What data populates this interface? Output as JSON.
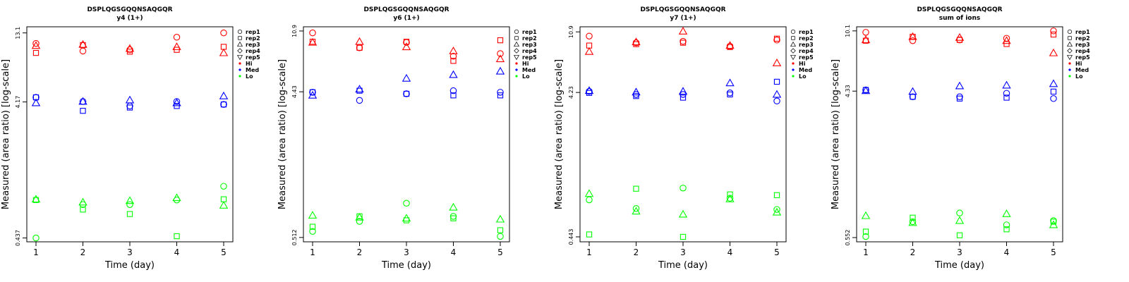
{
  "colors": {
    "Hi": "#ff0000",
    "Med": "#0000ff",
    "Lo": "#00ff00"
  },
  "legend": {
    "shapes": [
      {
        "label": "rep1",
        "shape": "circle"
      },
      {
        "label": "rep2",
        "shape": "square"
      },
      {
        "label": "rep3",
        "shape": "triangle-up"
      },
      {
        "label": "rep4",
        "shape": "diamond"
      },
      {
        "label": "rep5",
        "shape": "triangle-down"
      }
    ],
    "groups": [
      "Hi",
      "Med",
      "Lo"
    ]
  },
  "chart_data": [
    {
      "type": "scatter",
      "title": "DSPLQGSGQQNSAQGQR",
      "subtitle": "y4 (1+)",
      "xlabel": "Time (day)",
      "ylabel": "Measured (area ratio) [log-scale]",
      "y_scale": "log",
      "yticks": [
        "0.437",
        "4.17",
        "13.1"
      ],
      "ylim": [
        0.41,
        14.5
      ],
      "xticks": [
        "1",
        "2",
        "3",
        "4",
        "5"
      ],
      "series": [
        {
          "group": "Hi",
          "rep": "rep1",
          "points": [
            [
              1,
              11.0
            ],
            [
              2,
              9.7
            ],
            [
              3,
              9.9
            ],
            [
              4,
              12.2
            ],
            [
              5,
              13.1
            ]
          ]
        },
        {
          "group": "Hi",
          "rep": "rep2",
          "points": [
            [
              1,
              9.4
            ],
            [
              2,
              10.7
            ],
            [
              3,
              9.6
            ],
            [
              4,
              9.9
            ],
            [
              5,
              10.4
            ]
          ]
        },
        {
          "group": "Hi",
          "rep": "rep3",
          "points": [
            [
              1,
              10.6
            ],
            [
              2,
              10.8
            ],
            [
              3,
              10.1
            ],
            [
              4,
              10.4
            ],
            [
              5,
              9.4
            ]
          ]
        },
        {
          "group": "Med",
          "rep": "rep1",
          "points": [
            [
              1,
              4.5
            ],
            [
              2,
              4.2
            ],
            [
              3,
              3.9
            ],
            [
              4,
              4.2
            ],
            [
              5,
              4.0
            ]
          ]
        },
        {
          "group": "Med",
          "rep": "rep2",
          "points": [
            [
              1,
              4.5
            ],
            [
              2,
              3.6
            ],
            [
              3,
              3.8
            ],
            [
              4,
              3.9
            ],
            [
              5,
              4.0
            ]
          ]
        },
        {
          "group": "Med",
          "rep": "rep3",
          "points": [
            [
              1,
              4.1
            ],
            [
              2,
              4.2
            ],
            [
              3,
              4.3
            ],
            [
              4,
              4.1
            ],
            [
              5,
              4.6
            ]
          ]
        },
        {
          "group": "Lo",
          "rep": "rep1",
          "points": [
            [
              1,
              0.437
            ],
            [
              2,
              0.76
            ],
            [
              3,
              0.76
            ],
            [
              4,
              0.82
            ],
            [
              5,
              1.03
            ]
          ]
        },
        {
          "group": "Lo",
          "rep": "rep2",
          "points": [
            [
              1,
              0.82
            ],
            [
              2,
              0.7
            ],
            [
              3,
              0.65
            ],
            [
              4,
              0.45
            ],
            [
              5,
              0.83
            ]
          ]
        },
        {
          "group": "Lo",
          "rep": "rep3",
          "points": [
            [
              1,
              0.83
            ],
            [
              2,
              0.79
            ],
            [
              3,
              0.81
            ],
            [
              4,
              0.85
            ],
            [
              5,
              0.75
            ]
          ]
        }
      ]
    },
    {
      "type": "scatter",
      "title": "DSPLQGSGQQNSAQGQR",
      "subtitle": "y6 (1+)",
      "xlabel": "Time (day)",
      "ylabel": "Measured (area ratio) [log-scale]",
      "y_scale": "log",
      "yticks": [
        "0.512",
        "4.43",
        "10.9"
      ],
      "ylim": [
        0.48,
        11.6
      ],
      "xticks": [
        "1",
        "2",
        "3",
        "4",
        "5"
      ],
      "series": [
        {
          "group": "Hi",
          "rep": "rep1",
          "points": [
            [
              1,
              10.6
            ],
            [
              2,
              8.5
            ],
            [
              3,
              9.2
            ],
            [
              4,
              7.5
            ],
            [
              5,
              7.8
            ]
          ]
        },
        {
          "group": "Hi",
          "rep": "rep2",
          "points": [
            [
              1,
              9.3
            ],
            [
              2,
              8.5
            ],
            [
              3,
              9.3
            ],
            [
              4,
              7.0
            ],
            [
              5,
              9.5
            ]
          ]
        },
        {
          "group": "Hi",
          "rep": "rep3",
          "points": [
            [
              1,
              9.2
            ],
            [
              2,
              9.3
            ],
            [
              3,
              8.6
            ],
            [
              4,
              8.1
            ],
            [
              5,
              7.2
            ]
          ]
        },
        {
          "group": "Med",
          "rep": "rep1",
          "points": [
            [
              1,
              4.4
            ],
            [
              2,
              3.9
            ],
            [
              3,
              4.3
            ],
            [
              4,
              4.5
            ],
            [
              5,
              4.4
            ]
          ]
        },
        {
          "group": "Med",
          "rep": "rep2",
          "points": [
            [
              1,
              4.4
            ],
            [
              2,
              4.5
            ],
            [
              3,
              4.3
            ],
            [
              4,
              4.2
            ],
            [
              5,
              4.2
            ]
          ]
        },
        {
          "group": "Med",
          "rep": "rep3",
          "points": [
            [
              1,
              4.2
            ],
            [
              2,
              4.6
            ],
            [
              3,
              5.4
            ],
            [
              4,
              5.7
            ],
            [
              5,
              6.0
            ]
          ]
        },
        {
          "group": "Lo",
          "rep": "rep1",
          "points": [
            [
              1,
              0.56
            ],
            [
              2,
              0.65
            ],
            [
              3,
              0.85
            ],
            [
              4,
              0.7
            ],
            [
              5,
              0.52
            ]
          ]
        },
        {
          "group": "Lo",
          "rep": "rep2",
          "points": [
            [
              1,
              0.6
            ],
            [
              2,
              0.7
            ],
            [
              3,
              0.66
            ],
            [
              4,
              0.68
            ],
            [
              5,
              0.57
            ]
          ]
        },
        {
          "group": "Lo",
          "rep": "rep3",
          "points": [
            [
              1,
              0.71
            ],
            [
              2,
              0.69
            ],
            [
              3,
              0.68
            ],
            [
              4,
              0.8
            ],
            [
              5,
              0.67
            ]
          ]
        }
      ]
    },
    {
      "type": "scatter",
      "title": "DSPLQGSGQQNSAQGQR",
      "subtitle": "y7 (1+)",
      "xlabel": "Time (day)",
      "ylabel": "Measured (area ratio) [log-scale]",
      "y_scale": "log",
      "yticks": [
        "0.443",
        "4.23",
        "10.9"
      ],
      "ylim": [
        0.41,
        11.8
      ],
      "xticks": [
        "1",
        "2",
        "3",
        "4",
        "5"
      ],
      "series": [
        {
          "group": "Hi",
          "rep": "rep1",
          "points": [
            [
              1,
              10.2
            ],
            [
              2,
              9.2
            ],
            [
              3,
              9.4
            ],
            [
              4,
              8.7
            ],
            [
              5,
              9.6
            ]
          ]
        },
        {
          "group": "Hi",
          "rep": "rep2",
          "points": [
            [
              1,
              8.8
            ],
            [
              2,
              9.0
            ],
            [
              3,
              9.2
            ],
            [
              4,
              8.6
            ],
            [
              5,
              9.8
            ]
          ]
        },
        {
          "group": "Hi",
          "rep": "rep3",
          "points": [
            [
              1,
              8.0
            ],
            [
              2,
              9.3
            ],
            [
              3,
              11.0
            ],
            [
              4,
              8.8
            ],
            [
              5,
              6.7
            ]
          ]
        },
        {
          "group": "Med",
          "rep": "rep1",
          "points": [
            [
              1,
              4.3
            ],
            [
              2,
              4.1
            ],
            [
              3,
              4.1
            ],
            [
              4,
              4.2
            ],
            [
              5,
              3.7
            ]
          ]
        },
        {
          "group": "Med",
          "rep": "rep2",
          "points": [
            [
              1,
              4.2
            ],
            [
              2,
              4.0
            ],
            [
              3,
              3.9
            ],
            [
              4,
              4.1
            ],
            [
              5,
              5.0
            ]
          ]
        },
        {
          "group": "Med",
          "rep": "rep3",
          "points": [
            [
              1,
              4.35
            ],
            [
              2,
              4.25
            ],
            [
              3,
              4.3
            ],
            [
              4,
              4.9
            ],
            [
              5,
              4.1
            ]
          ]
        },
        {
          "group": "Lo",
          "rep": "rep1",
          "points": [
            [
              1,
              0.79
            ],
            [
              2,
              0.69
            ],
            [
              3,
              0.95
            ],
            [
              4,
              0.81
            ],
            [
              5,
              0.68
            ]
          ]
        },
        {
          "group": "Lo",
          "rep": "rep2",
          "points": [
            [
              1,
              0.46
            ],
            [
              2,
              0.94
            ],
            [
              3,
              0.443
            ],
            [
              4,
              0.86
            ],
            [
              5,
              0.85
            ]
          ]
        },
        {
          "group": "Lo",
          "rep": "rep3",
          "points": [
            [
              1,
              0.87
            ],
            [
              2,
              0.66
            ],
            [
              3,
              0.63
            ],
            [
              4,
              0.8
            ],
            [
              5,
              0.65
            ]
          ]
        }
      ]
    },
    {
      "type": "scatter",
      "title": "DSPLQGSGQQNSAQGQR",
      "subtitle": "sum of ions",
      "xlabel": "Time (day)",
      "ylabel": "Measured (area ratio) [log-scale]",
      "y_scale": "log",
      "yticks": [
        "0.552",
        "4.33",
        "10.1"
      ],
      "ylim": [
        0.52,
        10.7
      ],
      "xticks": [
        "1",
        "2",
        "3",
        "4",
        "5"
      ],
      "series": [
        {
          "group": "Hi",
          "rep": "rep1",
          "points": [
            [
              1,
              9.9
            ],
            [
              2,
              8.8
            ],
            [
              3,
              8.9
            ],
            [
              4,
              9.1
            ],
            [
              5,
              10.1
            ]
          ]
        },
        {
          "group": "Hi",
          "rep": "rep2",
          "points": [
            [
              1,
              8.8
            ],
            [
              2,
              9.3
            ],
            [
              3,
              8.9
            ],
            [
              4,
              8.4
            ],
            [
              5,
              9.6
            ]
          ]
        },
        {
          "group": "Hi",
          "rep": "rep3",
          "points": [
            [
              1,
              8.9
            ],
            [
              2,
              9.3
            ],
            [
              3,
              9.2
            ],
            [
              4,
              8.8
            ],
            [
              5,
              7.4
            ]
          ]
        },
        {
          "group": "Med",
          "rep": "rep1",
          "points": [
            [
              1,
              4.4
            ],
            [
              2,
              4.0
            ],
            [
              3,
              4.0
            ],
            [
              4,
              4.2
            ],
            [
              5,
              3.9
            ]
          ]
        },
        {
          "group": "Med",
          "rep": "rep2",
          "points": [
            [
              1,
              4.4
            ],
            [
              2,
              4.0
            ],
            [
              3,
              3.9
            ],
            [
              4,
              3.95
            ],
            [
              5,
              4.3
            ]
          ]
        },
        {
          "group": "Med",
          "rep": "rep3",
          "points": [
            [
              1,
              4.35
            ],
            [
              2,
              4.3
            ],
            [
              3,
              4.65
            ],
            [
              4,
              4.7
            ],
            [
              5,
              4.8
            ]
          ]
        },
        {
          "group": "Lo",
          "rep": "rep1",
          "points": [
            [
              1,
              0.56
            ],
            [
              2,
              0.69
            ],
            [
              3,
              0.78
            ],
            [
              4,
              0.66
            ],
            [
              5,
              0.7
            ]
          ]
        },
        {
          "group": "Lo",
          "rep": "rep2",
          "points": [
            [
              1,
              0.6
            ],
            [
              2,
              0.73
            ],
            [
              3,
              0.57
            ],
            [
              4,
              0.62
            ],
            [
              5,
              0.69
            ]
          ]
        },
        {
          "group": "Lo",
          "rep": "rep3",
          "points": [
            [
              1,
              0.75
            ],
            [
              2,
              0.68
            ],
            [
              3,
              0.7
            ],
            [
              4,
              0.77
            ],
            [
              5,
              0.66
            ]
          ]
        }
      ]
    }
  ]
}
